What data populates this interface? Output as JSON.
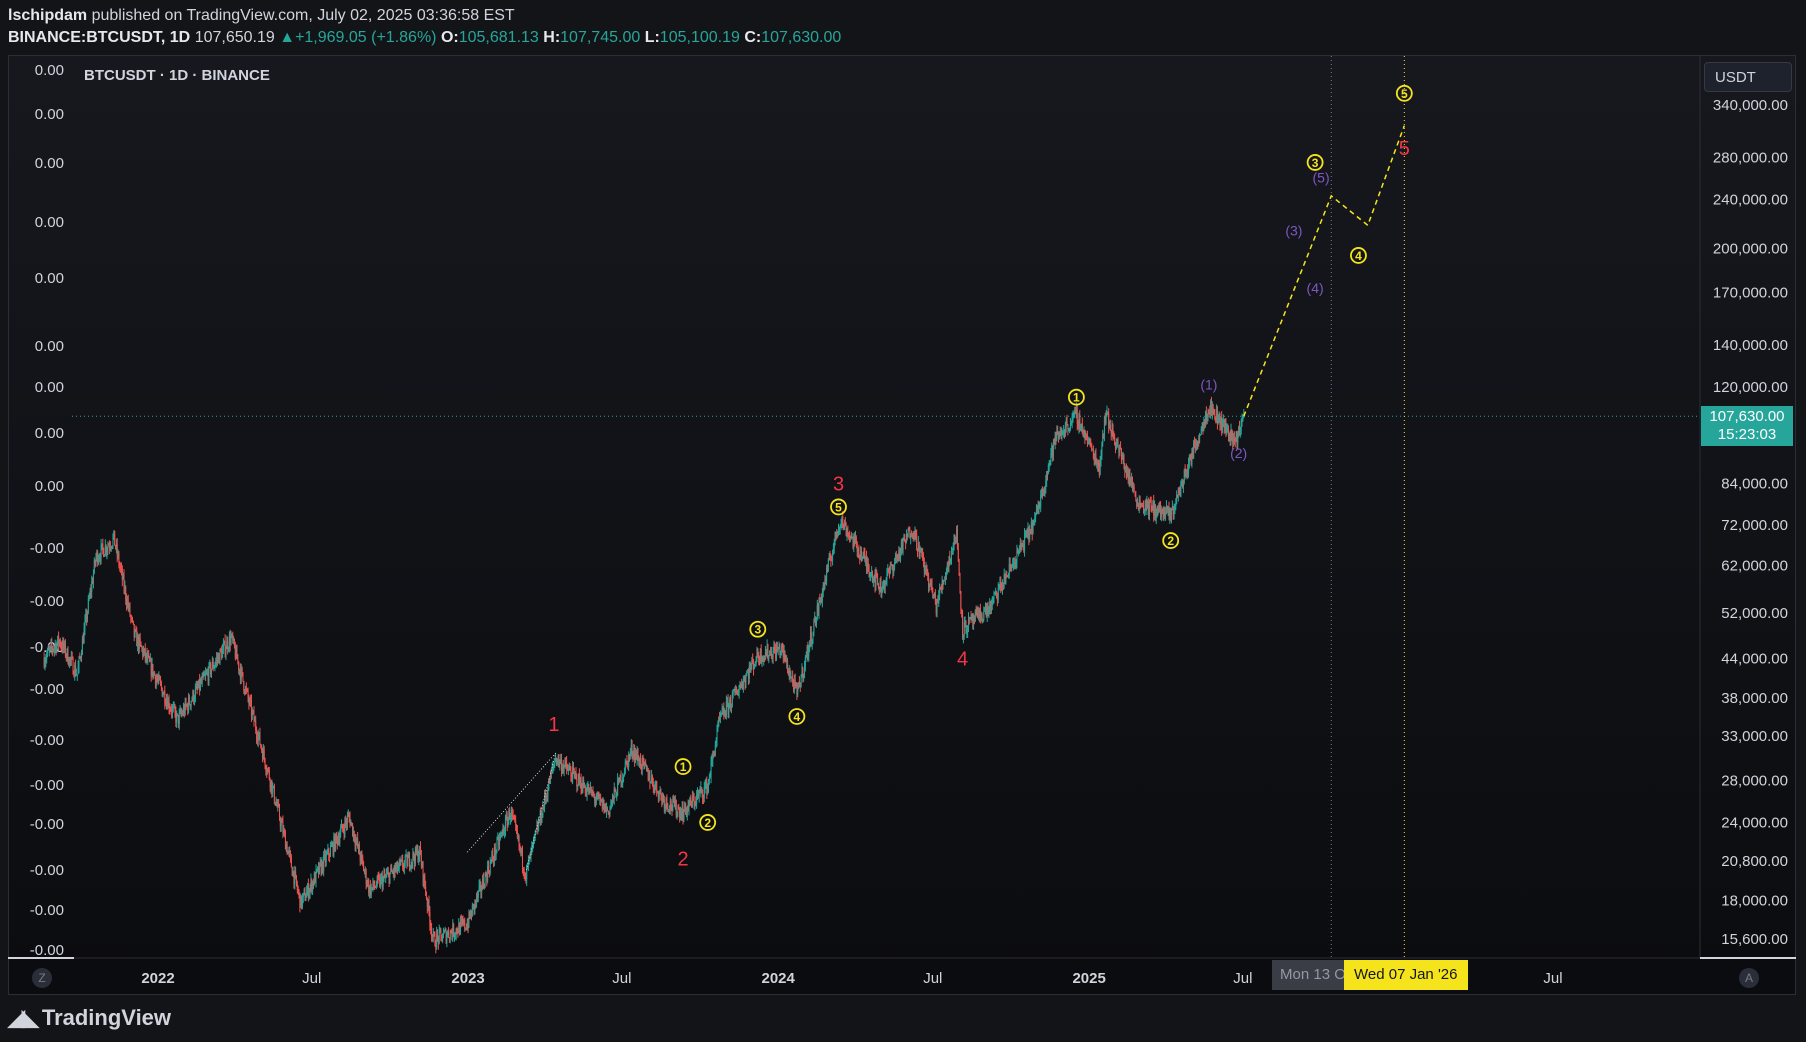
{
  "header": {
    "author": "lschipdam",
    "published": "published on TradingView.com, July 02, 2025 03:36:58 EST",
    "symbol": "BINANCE:BTCUSDT, 1D",
    "price": "107,650.19",
    "change_arrow": "▲",
    "change": "+1,969.05 (+1.86%)",
    "o_label": "O:",
    "o_value": "105,681.13",
    "h_label": "H:",
    "h_value": "107,745.00",
    "l_label": "L:",
    "l_value": "105,100.19",
    "c_label": "C:",
    "c_value": "107,630.00"
  },
  "chart_label": "BTCUSDT · 1D · BINANCE",
  "currency_button": "USDT",
  "last_price_tag": {
    "price": "107,630.00",
    "countdown": "15:23:03"
  },
  "crosshair_dates": {
    "grey": "Mon 13 O",
    "yellow": "Wed 07 Jan '26"
  },
  "scale_buttons": {
    "left": "Z",
    "right": "A"
  },
  "footer_brand": "TradingView",
  "colors": {
    "up": "#26a69a",
    "down": "#ef5350",
    "wave_yellow": "#f5e41b",
    "wave_red": "#f23645",
    "wave_purple": "#7e57c2",
    "background": "#131418"
  },
  "chart_data": {
    "type": "candlestick",
    "title": "BTCUSDT · 1D · BINANCE",
    "y_scale": "log",
    "ylim": [
      14500,
      390000
    ],
    "right_axis_ticks": [
      340000,
      280000,
      240000,
      200000,
      170000,
      140000,
      120000,
      84000,
      72000,
      62000,
      52000,
      44000,
      38000,
      33000,
      28000,
      24000,
      20800,
      18000,
      15600
    ],
    "right_axis_labels": [
      "340,000.00",
      "280,000.00",
      "240,000.00",
      "200,000.00",
      "170,000.00",
      "140,000.00",
      "120,000.00",
      "84,000.00",
      "72,000.00",
      "62,000.00",
      "52,000.00",
      "44,000.00",
      "38,000.00",
      "33,000.00",
      "28,000.00",
      "24,000.00",
      "20,800.00",
      "18,000.00",
      "15,600.00"
    ],
    "left_axis_labels": [
      "0.00",
      "0.00",
      "0.00",
      "0.00",
      "0.00",
      "0.00",
      "0.00",
      "0.00",
      "0.00",
      "-0.00",
      "-0.00",
      "-0.00",
      "-0.00",
      "-0.00",
      "-0.00",
      "-0.00",
      "-0.00",
      "-0.00",
      "-0.00"
    ],
    "x_axis_labels": [
      {
        "date": "2022-01-01",
        "label": "2022",
        "bold": true
      },
      {
        "date": "2022-07-01",
        "label": "Jul",
        "bold": false
      },
      {
        "date": "2023-01-01",
        "label": "2023",
        "bold": true
      },
      {
        "date": "2023-07-01",
        "label": "Jul",
        "bold": false
      },
      {
        "date": "2024-01-01",
        "label": "2024",
        "bold": true
      },
      {
        "date": "2024-07-01",
        "label": "Jul",
        "bold": false
      },
      {
        "date": "2025-01-01",
        "label": "2025",
        "bold": true
      },
      {
        "date": "2025-07-01",
        "label": "Jul",
        "bold": false
      },
      {
        "date": "2026-07-01",
        "label": "Jul",
        "bold": false
      }
    ],
    "price_path": [
      [
        "2021-08-20",
        44000
      ],
      [
        "2021-09-07",
        47000
      ],
      [
        "2021-09-28",
        41500
      ],
      [
        "2021-10-20",
        64000
      ],
      [
        "2021-11-10",
        68500
      ],
      [
        "2021-12-04",
        48000
      ],
      [
        "2022-01-24",
        35000
      ],
      [
        "2022-03-28",
        47500
      ],
      [
        "2022-05-12",
        28500
      ],
      [
        "2022-06-18",
        17800
      ],
      [
        "2022-08-14",
        24500
      ],
      [
        "2022-09-07",
        18700
      ],
      [
        "2022-11-05",
        21500
      ],
      [
        "2022-11-21",
        15500
      ],
      [
        "2022-12-31",
        16500
      ],
      [
        "2023-02-20",
        25000
      ],
      [
        "2023-03-10",
        19800
      ],
      [
        "2023-04-14",
        30500
      ],
      [
        "2023-06-15",
        25000
      ],
      [
        "2023-07-13",
        31500
      ],
      [
        "2023-08-20",
        26000
      ],
      [
        "2023-09-11",
        24900
      ],
      [
        "2023-10-10",
        27500
      ],
      [
        "2023-10-24",
        35000
      ],
      [
        "2023-12-08",
        44500
      ],
      [
        "2024-01-05",
        45500
      ],
      [
        "2024-01-23",
        38500
      ],
      [
        "2024-03-14",
        73700
      ],
      [
        "2024-05-01",
        57000
      ],
      [
        "2024-06-07",
        71500
      ],
      [
        "2024-07-05",
        53500
      ],
      [
        "2024-07-29",
        70000
      ],
      [
        "2024-08-05",
        49000
      ],
      [
        "2024-09-06",
        53000
      ],
      [
        "2024-10-29",
        73000
      ],
      [
        "2024-11-22",
        99000
      ],
      [
        "2024-12-17",
        108000
      ],
      [
        "2025-01-13",
        89300
      ],
      [
        "2025-01-20",
        109000
      ],
      [
        "2025-02-28",
        78200
      ],
      [
        "2025-04-07",
        74500
      ],
      [
        "2025-05-22",
        111900
      ],
      [
        "2025-06-22",
        98200
      ],
      [
        "2025-07-02",
        107630
      ]
    ],
    "last_price": 107630,
    "projection": [
      [
        "2025-07-02",
        107630
      ],
      [
        "2025-10-13",
        243000
      ],
      [
        "2025-11-25",
        218000
      ],
      [
        "2026-01-07",
        315000
      ]
    ],
    "crosshair_date": "2026-01-07",
    "secondary_crosshair_date": "2025-10-13",
    "wave_labels": [
      {
        "date": "2023-04-12",
        "price": 34500,
        "text": "1",
        "style": "red"
      },
      {
        "date": "2023-09-11",
        "price": 21000,
        "text": "2",
        "style": "red"
      },
      {
        "date": "2024-03-12",
        "price": 84000,
        "text": "3",
        "style": "red"
      },
      {
        "date": "2024-08-05",
        "price": 44000,
        "text": "4",
        "style": "red"
      },
      {
        "date": "2026-01-07",
        "price": 290000,
        "text": "5",
        "style": "red"
      },
      {
        "date": "2023-09-11",
        "price": 29500,
        "text": "1",
        "style": "yellow-circle"
      },
      {
        "date": "2023-10-10",
        "price": 24000,
        "text": "2",
        "style": "yellow-circle"
      },
      {
        "date": "2023-12-08",
        "price": 49000,
        "text": "3",
        "style": "yellow-circle"
      },
      {
        "date": "2024-01-23",
        "price": 35500,
        "text": "4",
        "style": "yellow-circle"
      },
      {
        "date": "2024-03-12",
        "price": 77000,
        "text": "5",
        "style": "yellow-circle"
      },
      {
        "date": "2024-12-17",
        "price": 115500,
        "text": "1",
        "style": "yellow-circle"
      },
      {
        "date": "2025-04-07",
        "price": 68000,
        "text": "2",
        "style": "yellow-circle"
      },
      {
        "date": "2025-09-24",
        "price": 275000,
        "text": "3",
        "style": "yellow-circle"
      },
      {
        "date": "2025-11-14",
        "price": 195000,
        "text": "4",
        "style": "yellow-circle"
      },
      {
        "date": "2026-01-07",
        "price": 355000,
        "text": "5",
        "style": "yellow-circle"
      },
      {
        "date": "2025-05-22",
        "price": 121000,
        "text": "(1)",
        "style": "purple"
      },
      {
        "date": "2025-06-26",
        "price": 94000,
        "text": "(2)",
        "style": "purple"
      },
      {
        "date": "2025-08-30",
        "price": 214000,
        "text": "(3)",
        "style": "purple"
      },
      {
        "date": "2025-09-24",
        "price": 173000,
        "text": "(4)",
        "style": "purple"
      },
      {
        "date": "2025-10-01",
        "price": 260000,
        "text": "(5)",
        "style": "purple"
      }
    ],
    "dotted_triangle": [
      [
        "2022-12-31",
        21500
      ],
      [
        "2023-04-14",
        31000
      ],
      [
        "2023-03-10",
        20000
      ]
    ]
  }
}
